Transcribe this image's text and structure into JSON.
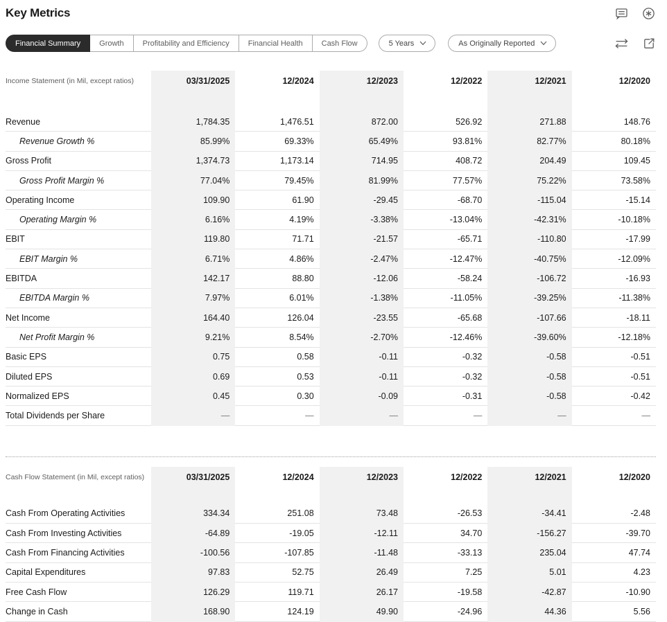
{
  "page": {
    "title": "Key Metrics"
  },
  "colors": {
    "ink": "#1a1a1a",
    "muted": "#5e5e5e",
    "row_line": "#e3e3e3",
    "highlight_band": "#f1f1f1",
    "selected_tab_bg": "#2b2b2b",
    "control_border": "#ababab"
  },
  "header_icons": [
    {
      "name": "comment-icon"
    },
    {
      "name": "asterisk-icon"
    }
  ],
  "toolbar": {
    "tabs": [
      {
        "label": "Financial Summary",
        "selected": true
      },
      {
        "label": "Growth",
        "selected": false
      },
      {
        "label": "Profitability and Efficiency",
        "selected": false
      },
      {
        "label": "Financial Health",
        "selected": false
      },
      {
        "label": "Cash Flow",
        "selected": false
      }
    ],
    "dropdowns": [
      {
        "label": "5 Years"
      },
      {
        "label": "As Originally Reported"
      }
    ],
    "icons": [
      {
        "name": "compare-arrows-icon"
      },
      {
        "name": "export-icon"
      }
    ]
  },
  "tables": [
    {
      "section_label": "Income Statement (in Mil, except ratios)",
      "columns": [
        "03/31/2025",
        "12/2024",
        "12/2023",
        "12/2022",
        "12/2021",
        "12/2020"
      ],
      "highlighted_columns": [
        0,
        2,
        4
      ],
      "rows": [
        {
          "label": "Revenue",
          "italic": false,
          "values": [
            "1,784.35",
            "1,476.51",
            "872.00",
            "526.92",
            "271.88",
            "148.76"
          ]
        },
        {
          "label": "Revenue Growth %",
          "italic": true,
          "values": [
            "85.99%",
            "69.33%",
            "65.49%",
            "93.81%",
            "82.77%",
            "80.18%"
          ]
        },
        {
          "label": "Gross Profit",
          "italic": false,
          "values": [
            "1,374.73",
            "1,173.14",
            "714.95",
            "408.72",
            "204.49",
            "109.45"
          ]
        },
        {
          "label": "Gross Profit Margin %",
          "italic": true,
          "values": [
            "77.04%",
            "79.45%",
            "81.99%",
            "77.57%",
            "75.22%",
            "73.58%"
          ]
        },
        {
          "label": "Operating Income",
          "italic": false,
          "values": [
            "109.90",
            "61.90",
            "-29.45",
            "-68.70",
            "-115.04",
            "-15.14"
          ]
        },
        {
          "label": "Operating Margin %",
          "italic": true,
          "values": [
            "6.16%",
            "4.19%",
            "-3.38%",
            "-13.04%",
            "-42.31%",
            "-10.18%"
          ]
        },
        {
          "label": "EBIT",
          "italic": false,
          "values": [
            "119.80",
            "71.71",
            "-21.57",
            "-65.71",
            "-110.80",
            "-17.99"
          ]
        },
        {
          "label": "EBIT Margin %",
          "italic": true,
          "values": [
            "6.71%",
            "4.86%",
            "-2.47%",
            "-12.47%",
            "-40.75%",
            "-12.09%"
          ]
        },
        {
          "label": "EBITDA",
          "italic": false,
          "values": [
            "142.17",
            "88.80",
            "-12.06",
            "-58.24",
            "-106.72",
            "-16.93"
          ]
        },
        {
          "label": "EBITDA Margin %",
          "italic": true,
          "values": [
            "7.97%",
            "6.01%",
            "-1.38%",
            "-11.05%",
            "-39.25%",
            "-11.38%"
          ]
        },
        {
          "label": "Net Income",
          "italic": false,
          "values": [
            "164.40",
            "126.04",
            "-23.55",
            "-65.68",
            "-107.66",
            "-18.11"
          ]
        },
        {
          "label": "Net Profit Margin %",
          "italic": true,
          "values": [
            "9.21%",
            "8.54%",
            "-2.70%",
            "-12.46%",
            "-39.60%",
            "-12.18%"
          ]
        },
        {
          "label": "Basic EPS",
          "italic": false,
          "values": [
            "0.75",
            "0.58",
            "-0.11",
            "-0.32",
            "-0.58",
            "-0.51"
          ]
        },
        {
          "label": "Diluted EPS",
          "italic": false,
          "values": [
            "0.69",
            "0.53",
            "-0.11",
            "-0.32",
            "-0.58",
            "-0.51"
          ]
        },
        {
          "label": "Normalized EPS",
          "italic": false,
          "values": [
            "0.45",
            "0.30",
            "-0.09",
            "-0.31",
            "-0.58",
            "-0.42"
          ]
        },
        {
          "label": "Total Dividends per Share",
          "italic": false,
          "values": [
            "—",
            "—",
            "—",
            "—",
            "—",
            "—"
          ]
        }
      ]
    },
    {
      "section_label": "Cash Flow Statement (in Mil, except ratios)",
      "columns": [
        "03/31/2025",
        "12/2024",
        "12/2023",
        "12/2022",
        "12/2021",
        "12/2020"
      ],
      "highlighted_columns": [
        0,
        2,
        4
      ],
      "rows": [
        {
          "label": "Cash From Operating Activities",
          "italic": false,
          "values": [
            "334.34",
            "251.08",
            "73.48",
            "-26.53",
            "-34.41",
            "-2.48"
          ]
        },
        {
          "label": "Cash From Investing Activities",
          "italic": false,
          "values": [
            "-64.89",
            "-19.05",
            "-12.11",
            "34.70",
            "-156.27",
            "-39.70"
          ]
        },
        {
          "label": "Cash From Financing Activities",
          "italic": false,
          "values": [
            "-100.56",
            "-107.85",
            "-11.48",
            "-33.13",
            "235.04",
            "47.74"
          ]
        },
        {
          "label": "Capital Expenditures",
          "italic": false,
          "values": [
            "97.83",
            "52.75",
            "26.49",
            "7.25",
            "5.01",
            "4.23"
          ]
        },
        {
          "label": "Free Cash Flow",
          "italic": false,
          "values": [
            "126.29",
            "119.71",
            "26.17",
            "-19.58",
            "-42.87",
            "-10.90"
          ]
        },
        {
          "label": "Change in Cash",
          "italic": false,
          "values": [
            "168.90",
            "124.19",
            "49.90",
            "-24.96",
            "44.36",
            "5.56"
          ]
        }
      ]
    }
  ]
}
